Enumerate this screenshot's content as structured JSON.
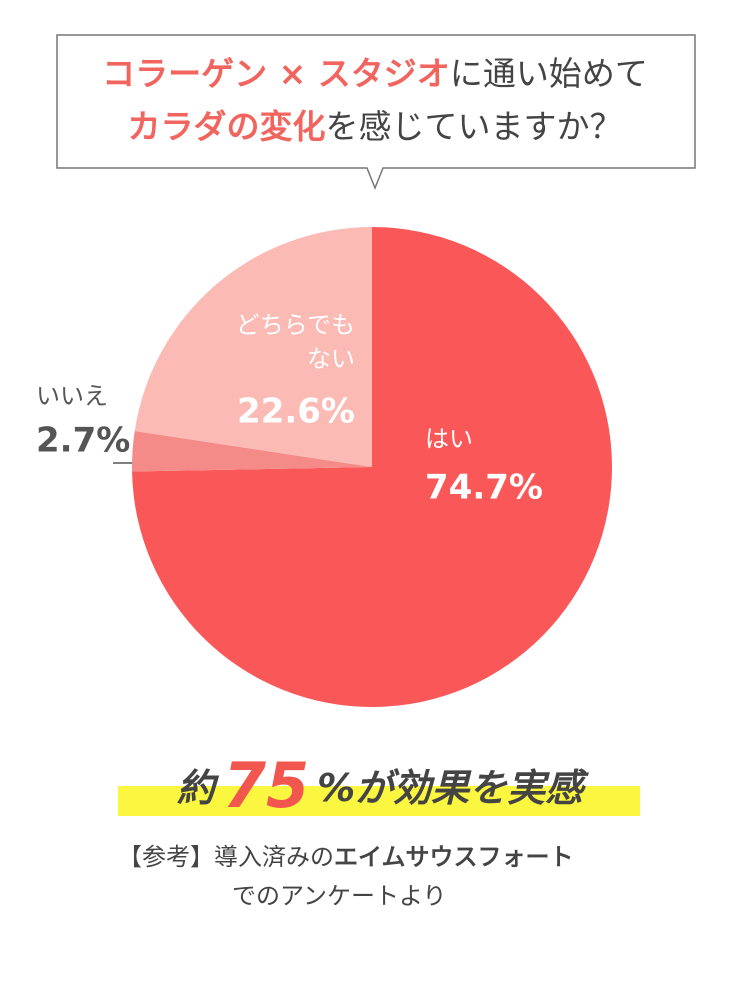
{
  "title": [
    [
      {
        "text": "コラーゲン × スタジオ",
        "highlight": true
      },
      {
        "text": "に通い始めて",
        "highlight": false
      }
    ],
    [
      {
        "text": "カラダの変化",
        "highlight": true
      },
      {
        "text": "を感じていますか？",
        "highlight": false
      }
    ]
  ],
  "title_highlight_color": "#f2655f",
  "chart_data": {
    "type": "pie",
    "categories": [
      "はい",
      "いいえ",
      "どちらでも\nない"
    ],
    "values": [
      74.7,
      2.7,
      22.6
    ],
    "value_labels": [
      "74.7%",
      "2.7%",
      "22.6%"
    ],
    "colors": [
      "#fa5858",
      "#f48b88",
      "#fbbab4"
    ]
  },
  "headline": [
    {
      "text": "約",
      "big": false
    },
    {
      "text": "75",
      "big": true
    },
    {
      "text": "%が効果を実感",
      "big": false
    }
  ],
  "note": [
    [
      {
        "text": "【参考】導入済みの",
        "bold": false
      },
      {
        "text": "エイムサウスフォート",
        "bold": true
      }
    ],
    [
      {
        "text": "でのアンケートより",
        "bold": false
      }
    ]
  ]
}
